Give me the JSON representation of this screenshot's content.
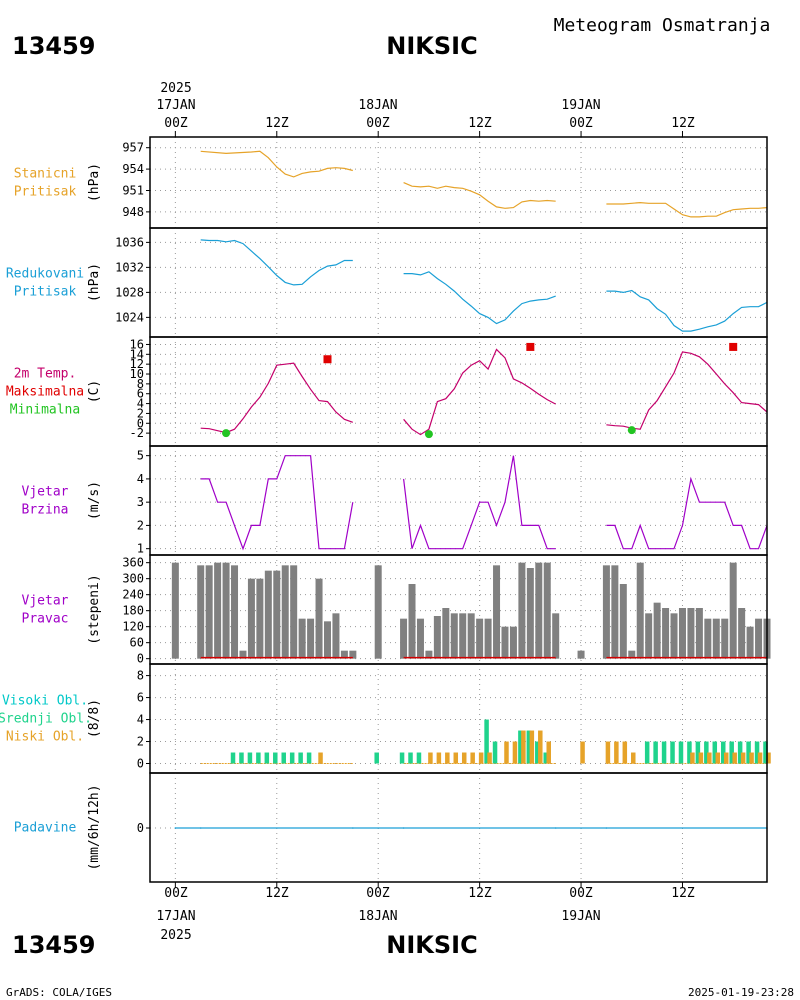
{
  "header": {
    "station_id": "13459",
    "station_name": "NIKSIC",
    "subtitle": "Meteogram Osmatranja"
  },
  "footer": {
    "credit": "GrADS: COLA/IGES",
    "timestamp": "2025-01-19-23:28"
  },
  "time_axis": {
    "year": "2025",
    "day_labels": [
      "17JAN",
      "18JAN",
      "19JAN"
    ],
    "hour_labels": [
      "00Z",
      "12Z",
      "00Z",
      "12Z",
      "00Z",
      "12Z"
    ],
    "tick_hours": [
      0,
      12,
      24,
      36,
      48,
      60
    ],
    "range_hours": [
      -3,
      70
    ]
  },
  "colors": {
    "pressure": "#e6a329",
    "reduced": "#1a9fd6",
    "temp": "#c4006b",
    "max": "#e00000",
    "min": "#22c422",
    "wind": "#a000c8",
    "dir_bar": "#808080",
    "high_cloud": "#00c8c8",
    "mid_cloud": "#1fd38c",
    "low_cloud": "#e6a329",
    "precip": "#1a9fd6"
  },
  "chart_data": [
    {
      "type": "line",
      "panel": "station_pressure",
      "label_lines": [
        "Stanicni",
        "Pritisak"
      ],
      "label_colors": [
        "pressure",
        "pressure"
      ],
      "ylabel": "(hPa)",
      "yticks": [
        948,
        951,
        954,
        957
      ],
      "ylim": [
        946.3,
        957.8
      ],
      "series": [
        {
          "color": "pressure",
          "x": [
            3,
            6,
            9,
            10,
            11,
            12,
            13,
            14,
            15,
            16,
            17,
            18,
            19,
            20,
            21
          ],
          "y": [
            956.5,
            956.2,
            956.4,
            956.5,
            955.6,
            954.3,
            953.3,
            952.9,
            953.4,
            953.6,
            953.7,
            954.1,
            954.2,
            954.1,
            953.8
          ]
        },
        {
          "color": "pressure",
          "x": [
            27,
            28,
            29,
            30,
            31,
            32,
            33,
            34,
            35,
            36,
            37,
            38,
            39,
            40,
            41,
            42,
            43,
            44,
            45
          ],
          "y": [
            952.1,
            951.6,
            951.5,
            951.6,
            951.3,
            951.6,
            951.4,
            951.3,
            950.9,
            950.4,
            949.5,
            948.7,
            948.5,
            948.6,
            949.4,
            949.6,
            949.5,
            949.6,
            949.5
          ]
        },
        {
          "color": "pressure",
          "x": [
            51,
            52,
            53,
            54,
            55,
            56,
            57,
            58,
            59,
            60,
            61,
            62,
            63,
            64,
            65,
            66,
            67,
            68,
            69,
            70
          ],
          "y": [
            949.1,
            949.1,
            949.1,
            949.2,
            949.3,
            949.2,
            949.2,
            949.2,
            948.4,
            947.6,
            947.3,
            947.3,
            947.4,
            947.4,
            947.9,
            948.3,
            948.4,
            948.5,
            948.5,
            948.6
          ]
        }
      ]
    },
    {
      "type": "line",
      "panel": "reduced_pressure",
      "label_lines": [
        "Redukovani",
        "Pritisak"
      ],
      "label_colors": [
        "reduced",
        "reduced"
      ],
      "ylabel": "(hPa)",
      "yticks": [
        1024,
        1028,
        1032,
        1036
      ],
      "ylim": [
        1021.5,
        1037.5
      ],
      "series": [
        {
          "color": "reduced",
          "x": [
            3,
            4,
            5,
            6,
            7,
            8,
            9,
            10,
            11,
            12,
            13,
            14,
            15,
            16,
            17,
            18,
            19,
            20,
            21
          ],
          "y": [
            1036.4,
            1036.3,
            1036.3,
            1036.1,
            1036.3,
            1035.8,
            1034.6,
            1033.4,
            1032.1,
            1030.7,
            1029.6,
            1029.2,
            1029.3,
            1030.5,
            1031.5,
            1032.2,
            1032.4,
            1033.1,
            1033.1
          ]
        },
        {
          "color": "reduced",
          "x": [
            27,
            28,
            29,
            30,
            31,
            32,
            33,
            34,
            35,
            36,
            37,
            38,
            39,
            40,
            41,
            42,
            43,
            44,
            45
          ],
          "y": [
            1031.0,
            1031.0,
            1030.8,
            1031.3,
            1030.2,
            1029.3,
            1028.2,
            1026.9,
            1025.8,
            1024.6,
            1024.0,
            1023.0,
            1023.6,
            1025.0,
            1026.2,
            1026.6,
            1026.8,
            1026.9,
            1027.4
          ]
        },
        {
          "color": "reduced",
          "x": [
            51,
            52,
            53,
            54,
            55,
            56,
            57,
            58,
            59,
            60,
            61,
            62,
            63,
            64,
            65,
            66,
            67,
            68,
            69,
            70
          ],
          "y": [
            1028.2,
            1028.2,
            1028.0,
            1028.3,
            1027.3,
            1026.8,
            1025.4,
            1024.5,
            1022.7,
            1021.8,
            1021.8,
            1022.1,
            1022.5,
            1022.8,
            1023.4,
            1024.6,
            1025.6,
            1025.7,
            1025.7,
            1026.4
          ]
        }
      ]
    },
    {
      "type": "line",
      "panel": "temperature",
      "label_lines": [
        "2m Temp.",
        "Maksimalna",
        "Minimalna"
      ],
      "label_colors": [
        "temp",
        "max",
        "min"
      ],
      "ylabel": "(C)",
      "yticks": [
        -2,
        0,
        2,
        4,
        6,
        8,
        10,
        12,
        14,
        16
      ],
      "ylim": [
        -3.8,
        16.5
      ],
      "series": [
        {
          "color": "temp",
          "x": [
            3,
            4,
            5,
            6,
            7,
            8,
            9,
            10,
            11,
            12,
            13,
            14,
            15,
            16,
            17,
            18,
            19,
            20,
            21
          ],
          "y": [
            -1.0,
            -1.1,
            -1.5,
            -1.9,
            -1.2,
            0.9,
            3.3,
            5.3,
            8.1,
            11.8,
            12.0,
            12.2,
            9.5,
            6.9,
            4.6,
            4.4,
            2.3,
            0.8,
            0.2
          ]
        },
        {
          "color": "temp",
          "x": [
            27,
            28,
            29,
            30,
            31,
            32,
            33,
            34,
            35,
            36,
            37,
            38,
            39,
            40,
            41,
            42,
            43,
            44,
            45
          ],
          "y": [
            0.8,
            -1.2,
            -2.3,
            -1.2,
            4.4,
            5.0,
            7.0,
            10.2,
            11.8,
            12.7,
            11.0,
            15.0,
            13.3,
            9.0,
            8.2,
            7.1,
            5.9,
            4.8,
            3.9
          ]
        },
        {
          "color": "temp",
          "x": [
            51,
            52,
            53,
            54,
            55,
            56,
            57,
            58,
            59,
            60,
            61,
            62,
            63,
            64,
            65,
            66,
            67,
            68,
            69,
            70
          ],
          "y": [
            -0.3,
            -0.5,
            -0.6,
            -1.0,
            -1.2,
            2.7,
            4.6,
            7.4,
            10.2,
            14.5,
            14.2,
            13.5,
            12.0,
            10.0,
            8.0,
            6.2,
            4.2,
            4.0,
            3.8,
            2.3
          ]
        }
      ],
      "max_points": [
        {
          "x": 18,
          "y": 13.0
        },
        {
          "x": 42,
          "y": 15.5
        },
        {
          "x": 66,
          "y": 15.5
        }
      ],
      "min_points": [
        {
          "x": 6,
          "y": -2.0
        },
        {
          "x": 30,
          "y": -2.2
        },
        {
          "x": 54,
          "y": -1.4
        }
      ]
    },
    {
      "type": "line",
      "panel": "wind_speed",
      "label_lines": [
        "Vjetar",
        "Brzina"
      ],
      "label_colors": [
        "wind",
        "wind"
      ],
      "ylabel": "(m/s)",
      "yticks": [
        1,
        2,
        3,
        4,
        5
      ],
      "ylim": [
        0.9,
        5.2
      ],
      "series": [
        {
          "color": "wind",
          "x": [
            3,
            4,
            5,
            6,
            7,
            8,
            9,
            10,
            11,
            12,
            13,
            14,
            15,
            16,
            17,
            18,
            19,
            20,
            21
          ],
          "y": [
            4,
            4,
            3,
            3,
            2,
            1,
            2,
            2,
            4,
            4,
            5,
            5,
            5,
            5,
            1,
            1,
            1,
            1,
            3
          ]
        },
        {
          "color": "wind",
          "x": [
            27,
            28,
            29,
            30,
            31,
            32,
            33,
            34,
            35,
            36,
            37,
            38,
            39,
            40,
            41,
            42,
            43,
            44,
            45
          ],
          "y": [
            4,
            1,
            2,
            1,
            1,
            1,
            1,
            1,
            2,
            3,
            3,
            2,
            3,
            5,
            2,
            2,
            2,
            1,
            1
          ]
        },
        {
          "color": "wind",
          "x": [
            51,
            52,
            53,
            54,
            55,
            56,
            57,
            58,
            59,
            60,
            61,
            62,
            63,
            64,
            65,
            66,
            67,
            68,
            69,
            70
          ],
          "y": [
            2,
            2,
            1,
            1,
            2,
            1,
            1,
            1,
            1,
            2,
            4,
            3,
            3,
            3,
            3,
            2,
            2,
            1,
            1,
            2
          ]
        }
      ]
    },
    {
      "type": "bar",
      "panel": "wind_direction",
      "label_lines": [
        "Vjetar",
        "Pravac"
      ],
      "label_colors": [
        "wind",
        "wind"
      ],
      "ylabel": "(stepeni)",
      "yticks": [
        0,
        60,
        120,
        180,
        240,
        300,
        360
      ],
      "ylim": [
        -5,
        370
      ],
      "color": "dir_bar",
      "x": [
        0,
        3,
        4,
        5,
        6,
        7,
        8,
        9,
        10,
        11,
        12,
        13,
        14,
        15,
        16,
        17,
        18,
        19,
        20,
        21,
        24,
        27,
        28,
        29,
        30,
        31,
        32,
        33,
        34,
        35,
        36,
        37,
        38,
        39,
        40,
        41,
        42,
        43,
        44,
        45,
        48,
        51,
        52,
        53,
        54,
        55,
        56,
        57,
        58,
        59,
        60,
        61,
        62,
        63,
        64,
        65,
        66,
        67,
        68,
        69,
        70
      ],
      "values": [
        360,
        350,
        350,
        360,
        360,
        350,
        30,
        300,
        300,
        330,
        330,
        350,
        350,
        150,
        150,
        300,
        140,
        170,
        30,
        30,
        350,
        150,
        280,
        150,
        30,
        160,
        190,
        170,
        170,
        170,
        150,
        150,
        350,
        120,
        120,
        360,
        340,
        360,
        360,
        170,
        30,
        350,
        350,
        280,
        30,
        360,
        170,
        210,
        190,
        170,
        190,
        190,
        190,
        150,
        150,
        150,
        360,
        190,
        120,
        150,
        150
      ]
    },
    {
      "type": "bar",
      "panel": "clouds",
      "label_lines": [
        "Visoki Obl.",
        "Srednji Obl.",
        "Niski Obl."
      ],
      "label_colors": [
        "high_cloud",
        "mid_cloud",
        "low_cloud"
      ],
      "ylabel": "(8/8)",
      "yticks": [
        0,
        2,
        4,
        6,
        8
      ],
      "ylim": [
        -0.5,
        8.6
      ],
      "series": [
        {
          "name": "mid",
          "color": "mid_cloud",
          "x": [
            7,
            8,
            9,
            10,
            11,
            12,
            13,
            14,
            15,
            16,
            24,
            27,
            28,
            29,
            37,
            38,
            41,
            42,
            43,
            44,
            56,
            57,
            58,
            59,
            60,
            61,
            62,
            63,
            64,
            65,
            66,
            67,
            68,
            69,
            70
          ],
          "values": [
            1,
            1,
            1,
            1,
            1,
            1,
            1,
            1,
            1,
            1,
            1,
            1,
            1,
            1,
            4,
            2,
            3,
            3,
            2,
            1,
            2,
            2,
            2,
            2,
            2,
            2,
            2,
            2,
            2,
            2,
            2,
            2,
            2,
            2,
            2
          ]
        },
        {
          "name": "low",
          "color": "low_cloud",
          "x": [
            17,
            30,
            31,
            32,
            33,
            34,
            35,
            36,
            37,
            39,
            40,
            41,
            42,
            43,
            44,
            48,
            51,
            52,
            53,
            54,
            61,
            62,
            63,
            64,
            65,
            66,
            67,
            68,
            69,
            70
          ],
          "values": [
            1,
            1,
            1,
            1,
            1,
            1,
            1,
            1,
            1,
            2,
            2,
            3,
            3,
            3,
            2,
            2,
            2,
            2,
            2,
            1,
            1,
            1,
            1,
            1,
            1,
            1,
            1,
            1,
            1,
            1
          ]
        }
      ]
    },
    {
      "type": "line",
      "panel": "precipitation",
      "label_lines": [
        "Padavine"
      ],
      "label_colors": [
        "precip"
      ],
      "ylabel": "(mm/6h/12h)",
      "yticks": [
        0
      ],
      "ylim": [
        -6,
        6
      ],
      "series": [
        {
          "color": "precip",
          "x": [
            0,
            3,
            21,
            27,
            45,
            51,
            70
          ],
          "y": [
            0,
            0,
            0,
            0,
            0,
            0,
            0
          ]
        }
      ]
    }
  ]
}
